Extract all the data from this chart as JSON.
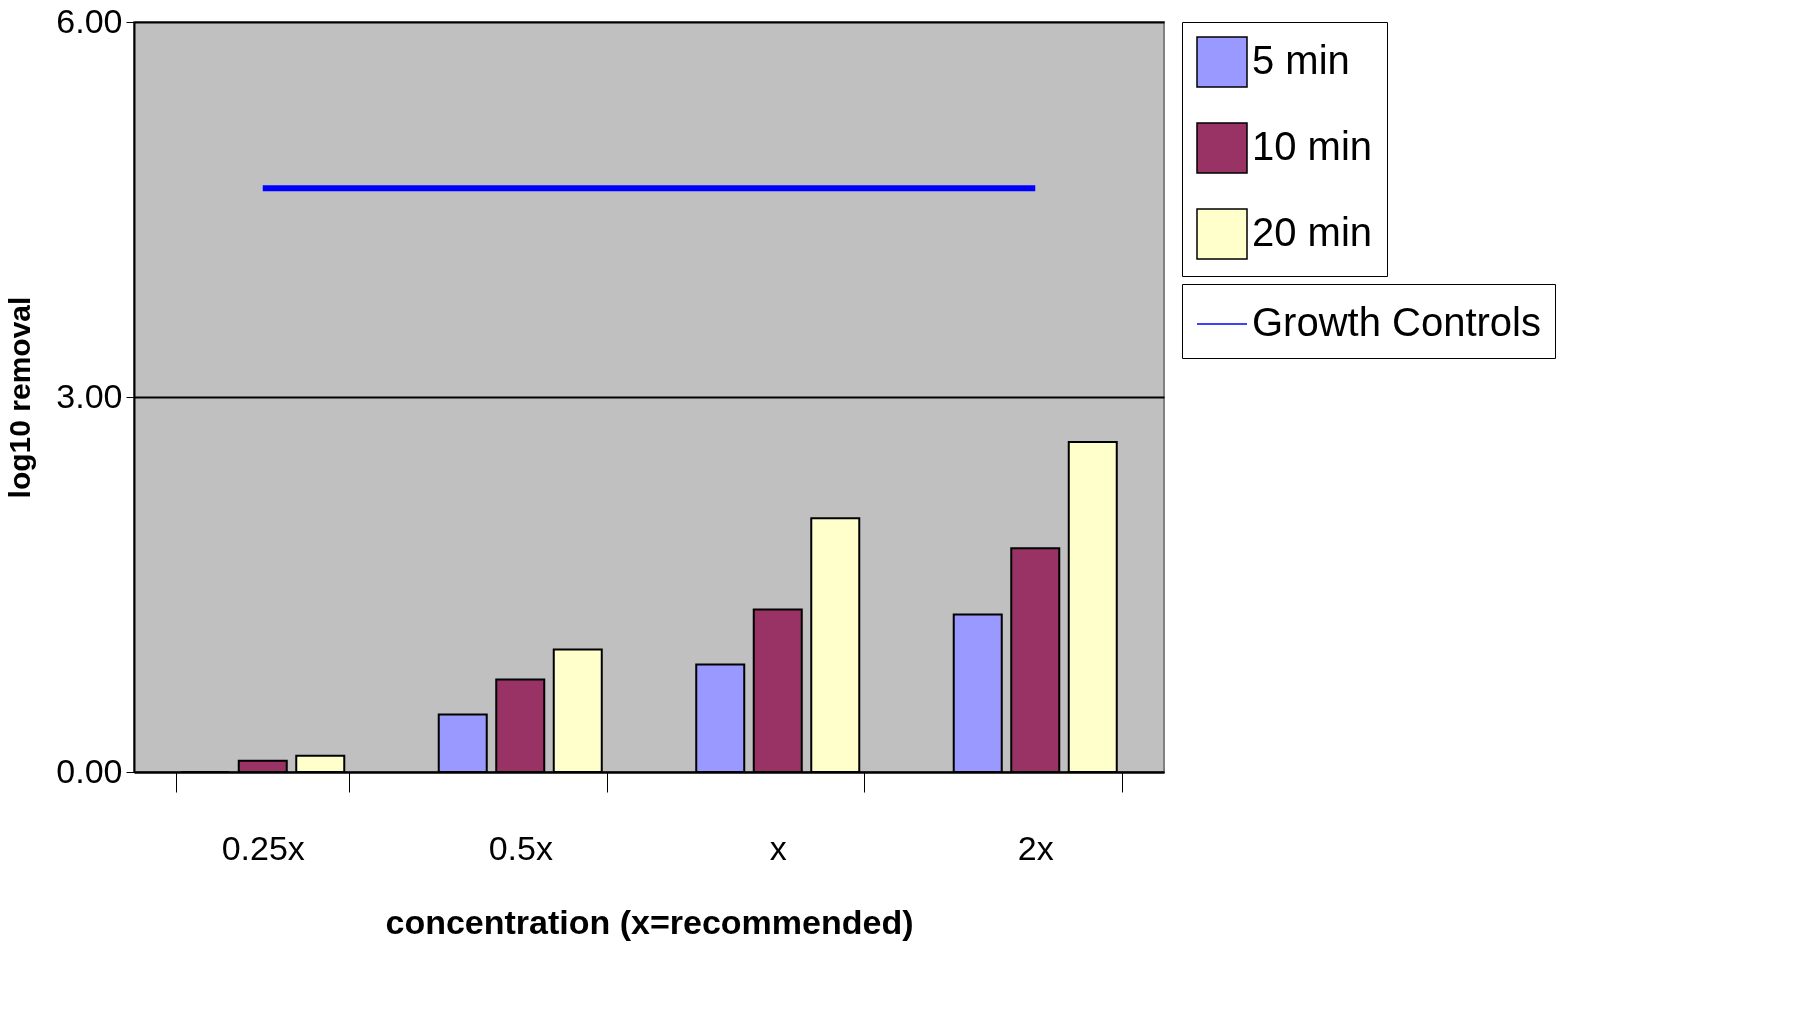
{
  "chart_data": {
    "type": "bar",
    "xlabel": "concentration (x=recommended)",
    "ylabel": "log10 removal",
    "categories": [
      "0.25x",
      "0.5x",
      "x",
      "2x"
    ],
    "series": [
      {
        "name": "5 min",
        "color": "#9999ff",
        "values": [
          0,
          0.46,
          0.86,
          1.26
        ]
      },
      {
        "name": "10 min",
        "color": "#993366",
        "values": [
          0.09,
          0.74,
          1.3,
          1.79
        ]
      },
      {
        "name": "20 min",
        "color": "#ffffcc",
        "values": [
          0.13,
          0.98,
          2.03,
          2.64
        ]
      },
      {
        "name": "Growth Controls",
        "type": "line",
        "color": "#0000ff",
        "values": [
          4.67,
          4.67,
          4.67,
          4.67
        ]
      }
    ],
    "ylim": [
      0,
      6
    ],
    "yticks": [
      {
        "value": 0,
        "label": "0.00"
      },
      {
        "value": 3,
        "label": "3.00"
      },
      {
        "value": 6,
        "label": "6.00"
      }
    ],
    "grid": "y",
    "legend": "right"
  }
}
